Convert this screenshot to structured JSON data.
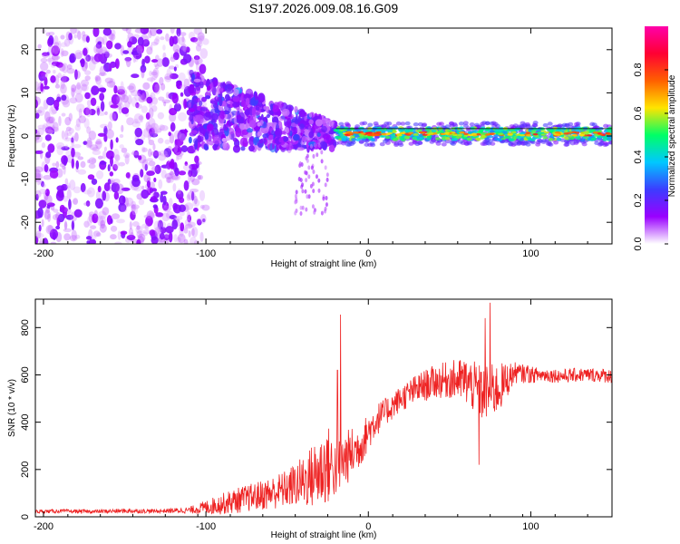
{
  "chart_data": [
    {
      "type": "heatmap",
      "title": "S197.2026.009.08.16.G09",
      "xlabel": "Height of straight line (km)",
      "ylabel": "Frequency (Hz)",
      "xlim": [
        -205,
        150
      ],
      "ylim": [
        -25,
        25
      ],
      "xticks": [
        -200,
        -100,
        0,
        100
      ],
      "yticks": [
        -20,
        -10,
        0,
        10,
        20
      ],
      "colorbar": {
        "label": "Normalized spectral amplitude",
        "range": [
          0,
          1
        ],
        "ticks": [
          "0.0",
          "0.2",
          "0.4",
          "0.6",
          "0.8"
        ],
        "tick_values": [
          0,
          0.2,
          0.4,
          0.6,
          0.8
        ],
        "colormap": [
          "#ffffff",
          "#9a00ff",
          "#3c3cff",
          "#00c8ff",
          "#00ff66",
          "#ffe400",
          "#ff6000",
          "#ff0033",
          "#ff00aa"
        ]
      },
      "ridge": {
        "x_start": -20,
        "x_end": 150,
        "frequency_hz": 0.5,
        "peak_amplitude": 0.8
      },
      "regions": [
        {
          "name": "noise",
          "x": [
            -205,
            -110
          ],
          "freq_spread_hz": 25,
          "amplitude": 0.1
        },
        {
          "name": "transition",
          "x": [
            -110,
            -20
          ],
          "freq_center_hz": [
            6,
            0
          ],
          "amplitude": 0.3
        },
        {
          "name": "stable",
          "x": [
            -20,
            150
          ],
          "freq_center_hz": 0.5,
          "amplitude": 0.65
        }
      ]
    },
    {
      "type": "line",
      "xlabel": "Height of straight line (km)",
      "ylabel": "SNR (10 * v/v)",
      "xlim": [
        -205,
        150
      ],
      "ylim": [
        0,
        920
      ],
      "xticks": [
        -200,
        -100,
        0,
        100
      ],
      "yticks": [
        0,
        200,
        400,
        600,
        800
      ],
      "color": "#ee2222",
      "series": [
        {
          "name": "SNR",
          "x": [
            -205,
            -190,
            -170,
            -150,
            -130,
            -110,
            -100,
            -90,
            -80,
            -70,
            -60,
            -50,
            -40,
            -30,
            -25,
            -20,
            -15,
            -10,
            -5,
            0,
            5,
            10,
            20,
            30,
            40,
            50,
            60,
            70,
            80,
            90,
            100,
            110,
            120,
            130,
            140,
            150
          ],
          "y": [
            22,
            24,
            22,
            25,
            24,
            28,
            40,
            55,
            70,
            85,
            100,
            120,
            150,
            190,
            220,
            200,
            240,
            270,
            300,
            360,
            410,
            440,
            500,
            540,
            570,
            580,
            575,
            520,
            540,
            610,
            600,
            600,
            595,
            600,
            600,
            595
          ],
          "noise_amplitude": [
            8,
            8,
            8,
            10,
            8,
            14,
            30,
            45,
            55,
            60,
            70,
            80,
            110,
            160,
            170,
            120,
            120,
            110,
            90,
            80,
            70,
            60,
            55,
            65,
            70,
            80,
            100,
            120,
            110,
            45,
            35,
            30,
            30,
            30,
            30,
            30
          ],
          "spikes": [
            {
              "x": -17,
              "y": 855
            },
            {
              "x": -19,
              "y": 620
            },
            {
              "x": 75,
              "y": 905
            },
            {
              "x": 72,
              "y": 840
            },
            {
              "x": 68,
              "y": 220
            },
            {
              "x": 98,
              "y": 640
            }
          ]
        }
      ]
    }
  ]
}
